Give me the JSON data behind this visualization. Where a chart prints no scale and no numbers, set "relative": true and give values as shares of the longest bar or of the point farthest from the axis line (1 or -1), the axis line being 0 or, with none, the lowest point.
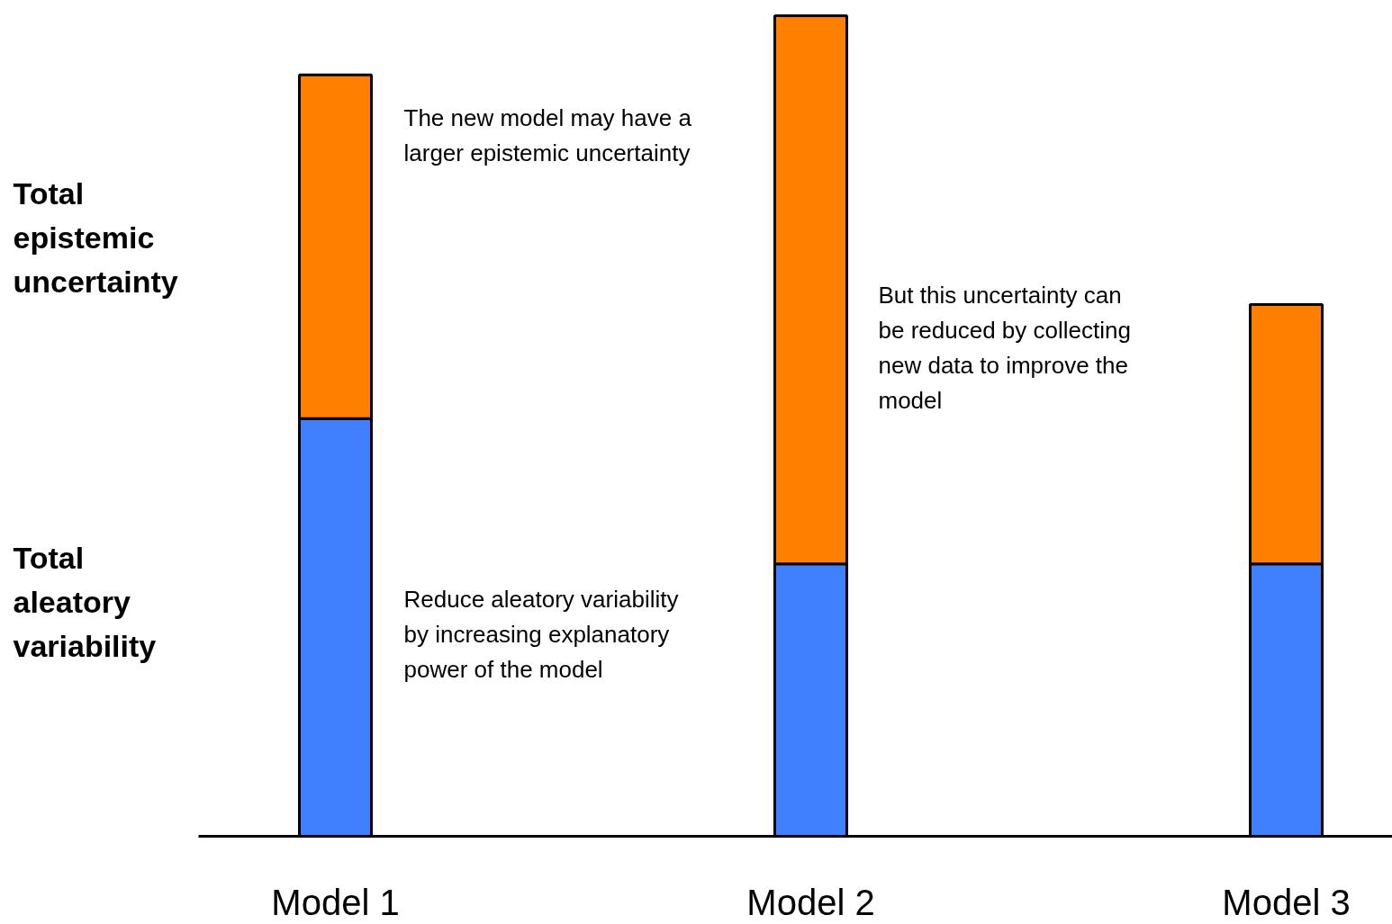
{
  "chart_data": {
    "type": "bar",
    "stacked": true,
    "relative": true,
    "grid": false,
    "categories": [
      "Model 1",
      "Model 2",
      "Model 3"
    ],
    "series": [
      {
        "color": "#4080ff",
        "values": [
          0.509,
          0.332,
          0.332
        ]
      },
      {
        "color": "#ff7f00",
        "values": [
          0.419,
          0.668,
          0.316
        ]
      }
    ],
    "annotations": [
      "Total epistemic uncertainty",
      "Total aleatory variability",
      "The new model may have a larger epistemic uncertainty",
      "Reduce aleatory variability by increasing explanatory power of the model",
      "But this uncertainty can be reduced by collecting new data to improve the model"
    ]
  }
}
